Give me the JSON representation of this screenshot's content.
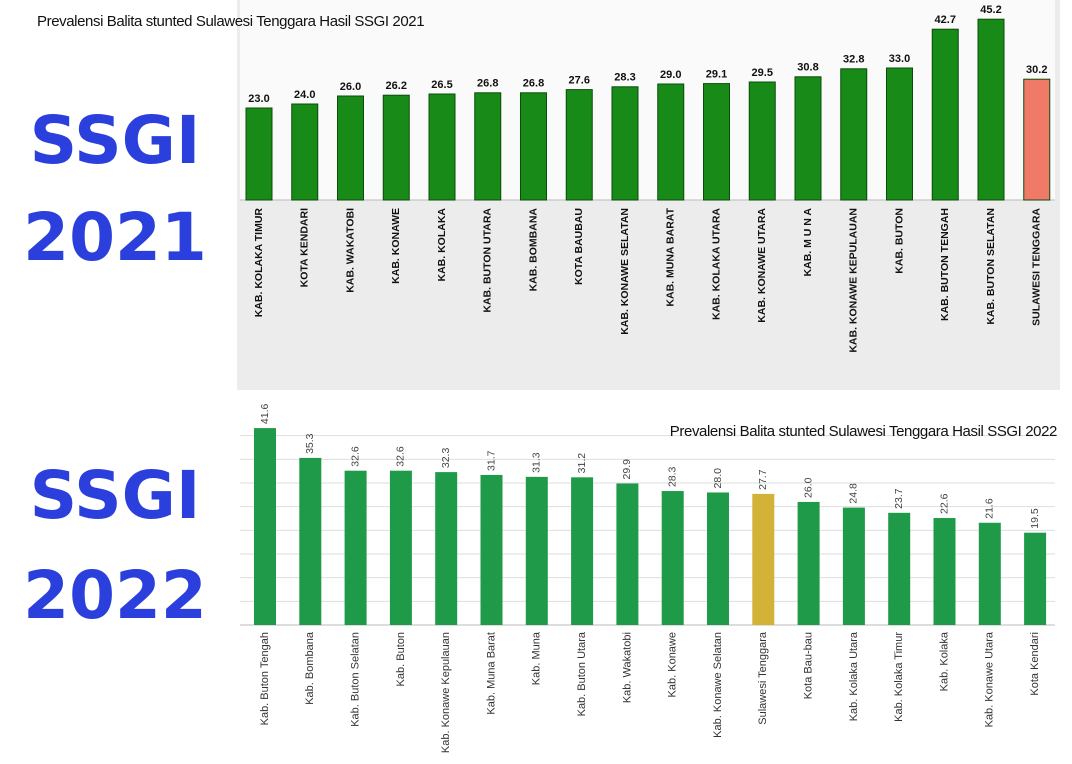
{
  "chart_data": [
    {
      "type": "bar",
      "title": "Prevalensi Balita stunted Sulawesi Tenggara Hasil SSGI 2021",
      "side_label": [
        "SSGI",
        "2021"
      ],
      "categories": [
        "KAB. KOLAKA TIMUR",
        "KOTA KENDARI",
        "KAB. WAKATOBI",
        "KAB. KONAWE",
        "KAB. KOLAKA",
        "KAB. BUTON UTARA",
        "KAB. BOMBANA",
        "KOTA BAUBAU",
        "KAB. KONAWE SELATAN",
        "KAB. MUNA BARAT",
        "KAB. KOLAKA UTARA",
        "KAB. KONAWE UTARA",
        "KAB. M U N A",
        "KAB. KONAWE KEPULAUAN",
        "KAB. BUTON",
        "KAB. BUTON TENGAH",
        "KAB. BUTON SELATAN",
        "SULAWESI TENGGARA"
      ],
      "values": [
        23.0,
        24.0,
        26.0,
        26.2,
        26.5,
        26.8,
        26.8,
        27.6,
        28.3,
        29.0,
        29.1,
        29.5,
        30.8,
        32.8,
        33.0,
        42.7,
        45.2,
        30.2
      ],
      "value_labels": [
        "23.0",
        "24.0",
        "26.0",
        "26.2",
        "26.5",
        "26.8",
        "26.8",
        "27.6",
        "28.3",
        "29.0",
        "29.1",
        "29.5",
        "30.8",
        "32.8",
        "33.0",
        "42.7",
        "45.2",
        "30.2"
      ],
      "colors": [
        "#178a17",
        "#178a17",
        "#178a17",
        "#178a17",
        "#178a17",
        "#178a17",
        "#178a17",
        "#178a17",
        "#178a17",
        "#178a17",
        "#178a17",
        "#178a17",
        "#178a17",
        "#178a17",
        "#178a17",
        "#178a17",
        "#178a17",
        "#f07a68"
      ],
      "ylim": [
        0,
        50
      ],
      "grid": false
    },
    {
      "type": "bar",
      "title": "Prevalensi Balita stunted Sulawesi Tenggara Hasil SSGI 2022",
      "side_label": [
        "SSGI",
        "2022"
      ],
      "categories": [
        "Kab. Buton Tengah",
        "Kab. Bombana",
        "Kab. Buton Selatan",
        "Kab. Buton",
        "Kab. Konawe Kepulauan",
        "Kab. Muna Barat",
        "Kab. Muna",
        "Kab. Buton Utara",
        "Kab. Wakatobi",
        "Kab. Konawe",
        "Kab. Konawe Selatan",
        "Sulawesi Tenggara",
        "Kota Bau-bau",
        "Kab. Kolaka Utara",
        "Kab. Kolaka Timur",
        "Kab. Kolaka",
        "Kab. Konawe Utara",
        "Kota Kendari"
      ],
      "values": [
        41.6,
        35.3,
        32.6,
        32.6,
        32.3,
        31.7,
        31.3,
        31.2,
        29.9,
        28.3,
        28.0,
        27.7,
        26.0,
        24.8,
        23.7,
        22.6,
        21.6,
        19.5
      ],
      "value_labels": [
        "41.6",
        "35.3",
        "32.6",
        "32.6",
        "32.3",
        "31.7",
        "31.3",
        "31.2",
        "29.9",
        "28.3",
        "28.0",
        "27.7",
        "26.0",
        "24.8",
        "23.7",
        "22.6",
        "21.6",
        "19.5"
      ],
      "colors": [
        "#1f9a48",
        "#1f9a48",
        "#1f9a48",
        "#1f9a48",
        "#1f9a48",
        "#1f9a48",
        "#1f9a48",
        "#1f9a48",
        "#1f9a48",
        "#1f9a48",
        "#1f9a48",
        "#d2b237",
        "#1f9a48",
        "#1f9a48",
        "#1f9a48",
        "#1f9a48",
        "#1f9a48",
        "#1f9a48"
      ],
      "ylim": [
        0,
        45
      ],
      "gridlines": [
        5,
        10,
        15,
        20,
        25,
        30,
        35,
        40
      ],
      "grid": true
    }
  ]
}
